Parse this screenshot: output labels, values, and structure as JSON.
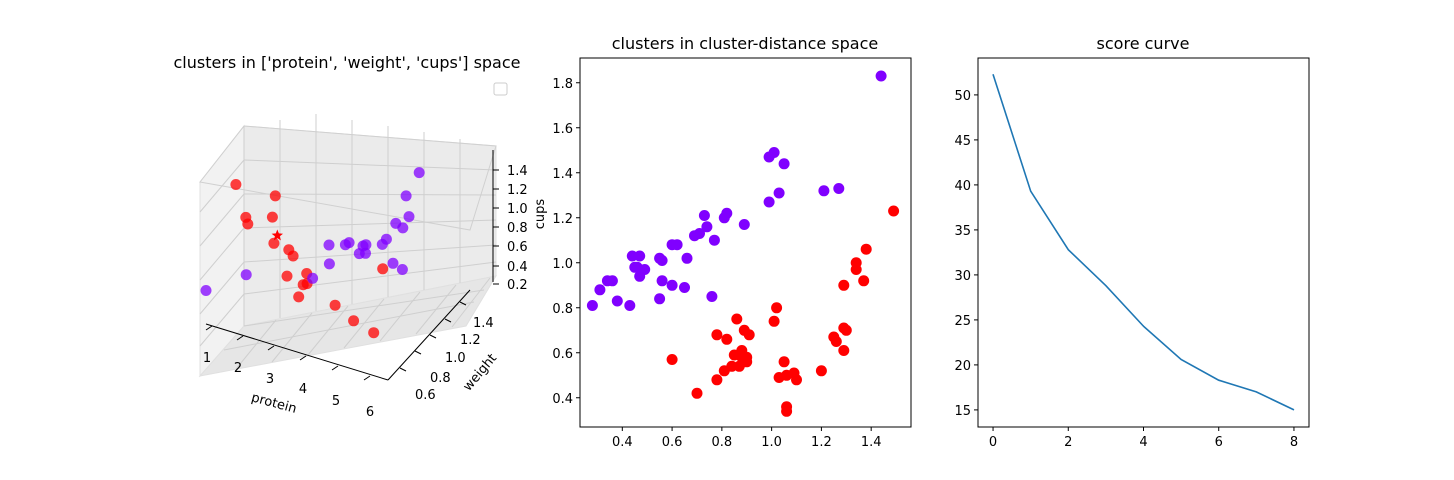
{
  "colors": {
    "cluster_a": "#8000ff",
    "cluster_b": "#ff0000",
    "line": "#1f77b4"
  },
  "chart_data": [
    {
      "type": "scatter",
      "projection": "3d",
      "title": "clusters in ['protein', 'weight', 'cups'] space",
      "xlabel": "protein",
      "ylabel": "weight",
      "zlabel": "",
      "x_ticks": [
        "1",
        "2",
        "3",
        "4",
        "5",
        "6"
      ],
      "y_ticks": [
        "0.6",
        "0.8",
        "1.0",
        "1.2",
        "1.4"
      ],
      "z_ticks": [
        "0.2",
        "0.4",
        "0.6",
        "0.8",
        "1.0",
        "1.2",
        "1.4"
      ],
      "legend": {
        "placement": "upper right",
        "entries": []
      },
      "centroid_marker": "star",
      "series": [
        {
          "color": "#ff0000",
          "points": [
            {
              "x": 1.6,
              "y": 0.7,
              "z": 1.37
            },
            {
              "x": 1.9,
              "y": 0.7,
              "z": 1.1
            },
            {
              "x": 1.9,
              "y": 0.72,
              "z": 1.02
            },
            {
              "x": 2.8,
              "y": 0.7,
              "z": 1.38
            },
            {
              "x": 2.4,
              "y": 0.8,
              "z": 1.05
            },
            {
              "x": 2.6,
              "y": 0.75,
              "z": 0.88
            },
            {
              "x": 2.9,
              "y": 0.8,
              "z": 0.8
            },
            {
              "x": 3.0,
              "y": 0.75,
              "z": 0.62
            },
            {
              "x": 3.4,
              "y": 0.78,
              "z": 0.55
            },
            {
              "x": 3.3,
              "y": 0.85,
              "z": 0.48
            },
            {
              "x": 3.2,
              "y": 0.8,
              "z": 0.4
            },
            {
              "x": 4.0,
              "y": 0.9,
              "z": 0.3
            },
            {
              "x": 5.5,
              "y": 0.6,
              "z": 0.6
            },
            {
              "x": 5.8,
              "y": 0.7,
              "z": 0.42
            },
            {
              "x": 3.5,
              "y": 0.65,
              "z": 0.95
            },
            {
              "x": 3.6,
              "y": 0.75,
              "z": 0.7
            },
            {
              "x": 4.2,
              "y": 1.3,
              "z": 0.25
            }
          ]
        },
        {
          "color": "#8000ff",
          "points": [
            {
              "x": 1.0,
              "y": 0.6,
              "z": 0.45
            },
            {
              "x": 1.6,
              "y": 0.8,
              "z": 0.45
            },
            {
              "x": 3.0,
              "y": 1.0,
              "z": 0.35
            },
            {
              "x": 3.5,
              "y": 1.0,
              "z": 0.7
            },
            {
              "x": 3.8,
              "y": 1.1,
              "z": 0.65
            },
            {
              "x": 4.0,
              "y": 1.2,
              "z": 0.55
            },
            {
              "x": 4.2,
              "y": 1.4,
              "z": 0.2
            },
            {
              "x": 4.0,
              "y": 1.4,
              "z": 0.4
            },
            {
              "x": 3.8,
              "y": 1.2,
              "z": 0.45
            },
            {
              "x": 4.5,
              "y": 1.2,
              "z": 0.6
            },
            {
              "x": 4.6,
              "y": 1.3,
              "z": 0.7
            },
            {
              "x": 5.0,
              "y": 1.4,
              "z": 1.1
            },
            {
              "x": 5.0,
              "y": 1.3,
              "z": 0.8
            },
            {
              "x": 4.5,
              "y": 1.4,
              "z": 0.55
            },
            {
              "x": 4.0,
              "y": 1.0,
              "z": 0.75
            },
            {
              "x": 3.2,
              "y": 1.1,
              "z": 0.4
            },
            {
              "x": 4.3,
              "y": 1.1,
              "z": 0.6
            },
            {
              "x": 4.8,
              "y": 1.3,
              "z": 0.3
            },
            {
              "x": 3.6,
              "y": 1.3,
              "z": 0.4
            },
            {
              "x": 4.6,
              "y": 1.4,
              "z": 0.85
            }
          ]
        }
      ],
      "centroid": {
        "x": 2.8,
        "y": 0.72,
        "z": 1.0
      }
    },
    {
      "type": "scatter",
      "title": "clusters in cluster-distance space",
      "xlabel": "",
      "ylabel": "cups",
      "xlim": [
        0.23,
        1.56
      ],
      "ylim": [
        0.27,
        1.91
      ],
      "x_ticks": [
        0.4,
        0.6,
        0.8,
        1.0,
        1.2,
        1.4
      ],
      "y_ticks": [
        0.4,
        0.6,
        0.8,
        1.0,
        1.2,
        1.4,
        1.6,
        1.8
      ],
      "series": [
        {
          "color": "#8000ff",
          "points": [
            [
              0.28,
              0.81
            ],
            [
              0.31,
              0.88
            ],
            [
              0.34,
              0.92
            ],
            [
              0.36,
              0.92
            ],
            [
              0.38,
              0.83
            ],
            [
              0.43,
              0.81
            ],
            [
              0.44,
              1.03
            ],
            [
              0.45,
              0.98
            ],
            [
              0.46,
              0.98
            ],
            [
              0.47,
              1.03
            ],
            [
              0.47,
              0.94
            ],
            [
              0.49,
              0.97
            ],
            [
              0.55,
              0.84
            ],
            [
              0.55,
              1.02
            ],
            [
              0.56,
              1.01
            ],
            [
              0.56,
              0.92
            ],
            [
              0.6,
              0.9
            ],
            [
              0.6,
              1.08
            ],
            [
              0.62,
              1.08
            ],
            [
              0.65,
              0.89
            ],
            [
              0.66,
              1.02
            ],
            [
              0.69,
              1.12
            ],
            [
              0.71,
              1.13
            ],
            [
              0.73,
              1.21
            ],
            [
              0.74,
              1.16
            ],
            [
              0.76,
              0.85
            ],
            [
              0.77,
              1.1
            ],
            [
              0.81,
              1.2
            ],
            [
              0.82,
              1.22
            ],
            [
              0.89,
              1.17
            ],
            [
              0.99,
              1.47
            ],
            [
              0.99,
              1.27
            ],
            [
              1.01,
              1.49
            ],
            [
              1.03,
              1.31
            ],
            [
              1.05,
              1.44
            ],
            [
              1.21,
              1.32
            ],
            [
              1.27,
              1.33
            ],
            [
              1.44,
              1.83
            ]
          ]
        },
        {
          "color": "#ff0000",
          "points": [
            [
              0.6,
              0.57
            ],
            [
              0.7,
              0.42
            ],
            [
              0.78,
              0.48
            ],
            [
              0.78,
              0.68
            ],
            [
              0.81,
              0.52
            ],
            [
              0.82,
              0.66
            ],
            [
              0.84,
              0.54
            ],
            [
              0.85,
              0.59
            ],
            [
              0.86,
              0.75
            ],
            [
              0.87,
              0.54
            ],
            [
              0.88,
              0.61
            ],
            [
              0.88,
              0.58
            ],
            [
              0.89,
              0.7
            ],
            [
              0.9,
              0.58
            ],
            [
              0.9,
              0.56
            ],
            [
              0.91,
              0.68
            ],
            [
              1.01,
              0.74
            ],
            [
              1.02,
              0.8
            ],
            [
              1.03,
              0.49
            ],
            [
              1.05,
              0.56
            ],
            [
              1.06,
              0.5
            ],
            [
              1.06,
              0.34
            ],
            [
              1.06,
              0.36
            ],
            [
              1.09,
              0.51
            ],
            [
              1.1,
              0.48
            ],
            [
              1.2,
              0.52
            ],
            [
              1.25,
              0.67
            ],
            [
              1.26,
              0.65
            ],
            [
              1.29,
              0.71
            ],
            [
              1.29,
              0.61
            ],
            [
              1.29,
              0.9
            ],
            [
              1.3,
              0.7
            ],
            [
              1.34,
              0.97
            ],
            [
              1.34,
              1.0
            ],
            [
              1.37,
              0.92
            ],
            [
              1.38,
              1.06
            ],
            [
              1.49,
              1.23
            ]
          ]
        }
      ]
    },
    {
      "type": "line",
      "title": "score curve",
      "xlabel": "",
      "ylabel": "",
      "xlim": [
        -0.4,
        8.4
      ],
      "ylim": [
        13.1,
        54.1
      ],
      "x_ticks": [
        0,
        2,
        4,
        6,
        8
      ],
      "y_ticks": [
        15,
        20,
        25,
        30,
        35,
        40,
        45,
        50
      ],
      "x": [
        0,
        1,
        2,
        3,
        4,
        5,
        6,
        7,
        8
      ],
      "y": [
        52.3,
        39.3,
        32.8,
        28.8,
        24.3,
        20.6,
        18.3,
        17.0,
        15.0
      ]
    }
  ]
}
